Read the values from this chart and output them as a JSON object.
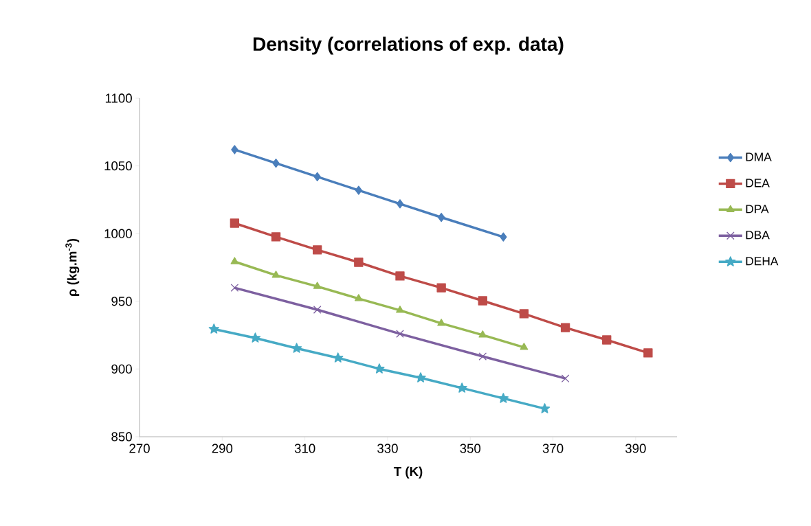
{
  "chart_data": {
    "type": "line",
    "title": "Density (correlations of exp. data)",
    "xlabel": "T (K)",
    "ylabel": "ρ (kg.m$^{-3}$)",
    "xlim": [
      270,
      400
    ],
    "xticks": [
      270,
      290,
      310,
      330,
      350,
      370,
      390
    ],
    "ylim": [
      850,
      1100
    ],
    "yticks": [
      850,
      900,
      950,
      1000,
      1050,
      1100
    ],
    "grid": false,
    "legend": "right",
    "line_style": "solid",
    "series": [
      {
        "name": "DMA",
        "color": "#4a7ebb",
        "marker": "diamond",
        "x": [
          293,
          303,
          313,
          323,
          333,
          343,
          358
        ],
        "values": [
          1062,
          1052,
          1042,
          1032,
          1022,
          1012,
          997.5
        ]
      },
      {
        "name": "DEA",
        "color": "#be4b48",
        "marker": "square",
        "x": [
          293,
          303,
          313,
          323,
          333,
          343,
          353,
          363,
          373,
          383,
          393
        ],
        "values": [
          1007.7,
          997.6,
          988,
          978.8,
          968.7,
          960,
          950.4,
          940.8,
          930.6,
          921.5,
          911.9
        ]
      },
      {
        "name": "DPA",
        "color": "#98b954",
        "marker": "triangle",
        "x": [
          293,
          303,
          313,
          323,
          333,
          343,
          353,
          363
        ],
        "values": [
          979.3,
          969.2,
          961,
          952,
          943.4,
          933.7,
          925.1,
          916
        ]
      },
      {
        "name": "DBA",
        "color": "#7d60a0",
        "marker": "cross",
        "x": [
          293,
          313,
          333,
          353,
          373
        ],
        "values": [
          960,
          943.8,
          926,
          909.3,
          893
        ]
      },
      {
        "name": "DEHA",
        "color": "#46aac5",
        "marker": "star",
        "x": [
          288,
          298,
          308,
          318,
          328,
          338,
          348,
          358,
          368
        ],
        "values": [
          929.5,
          922.9,
          915.3,
          908.2,
          900.1,
          893.5,
          885.9,
          878.3,
          870.7
        ]
      }
    ]
  }
}
